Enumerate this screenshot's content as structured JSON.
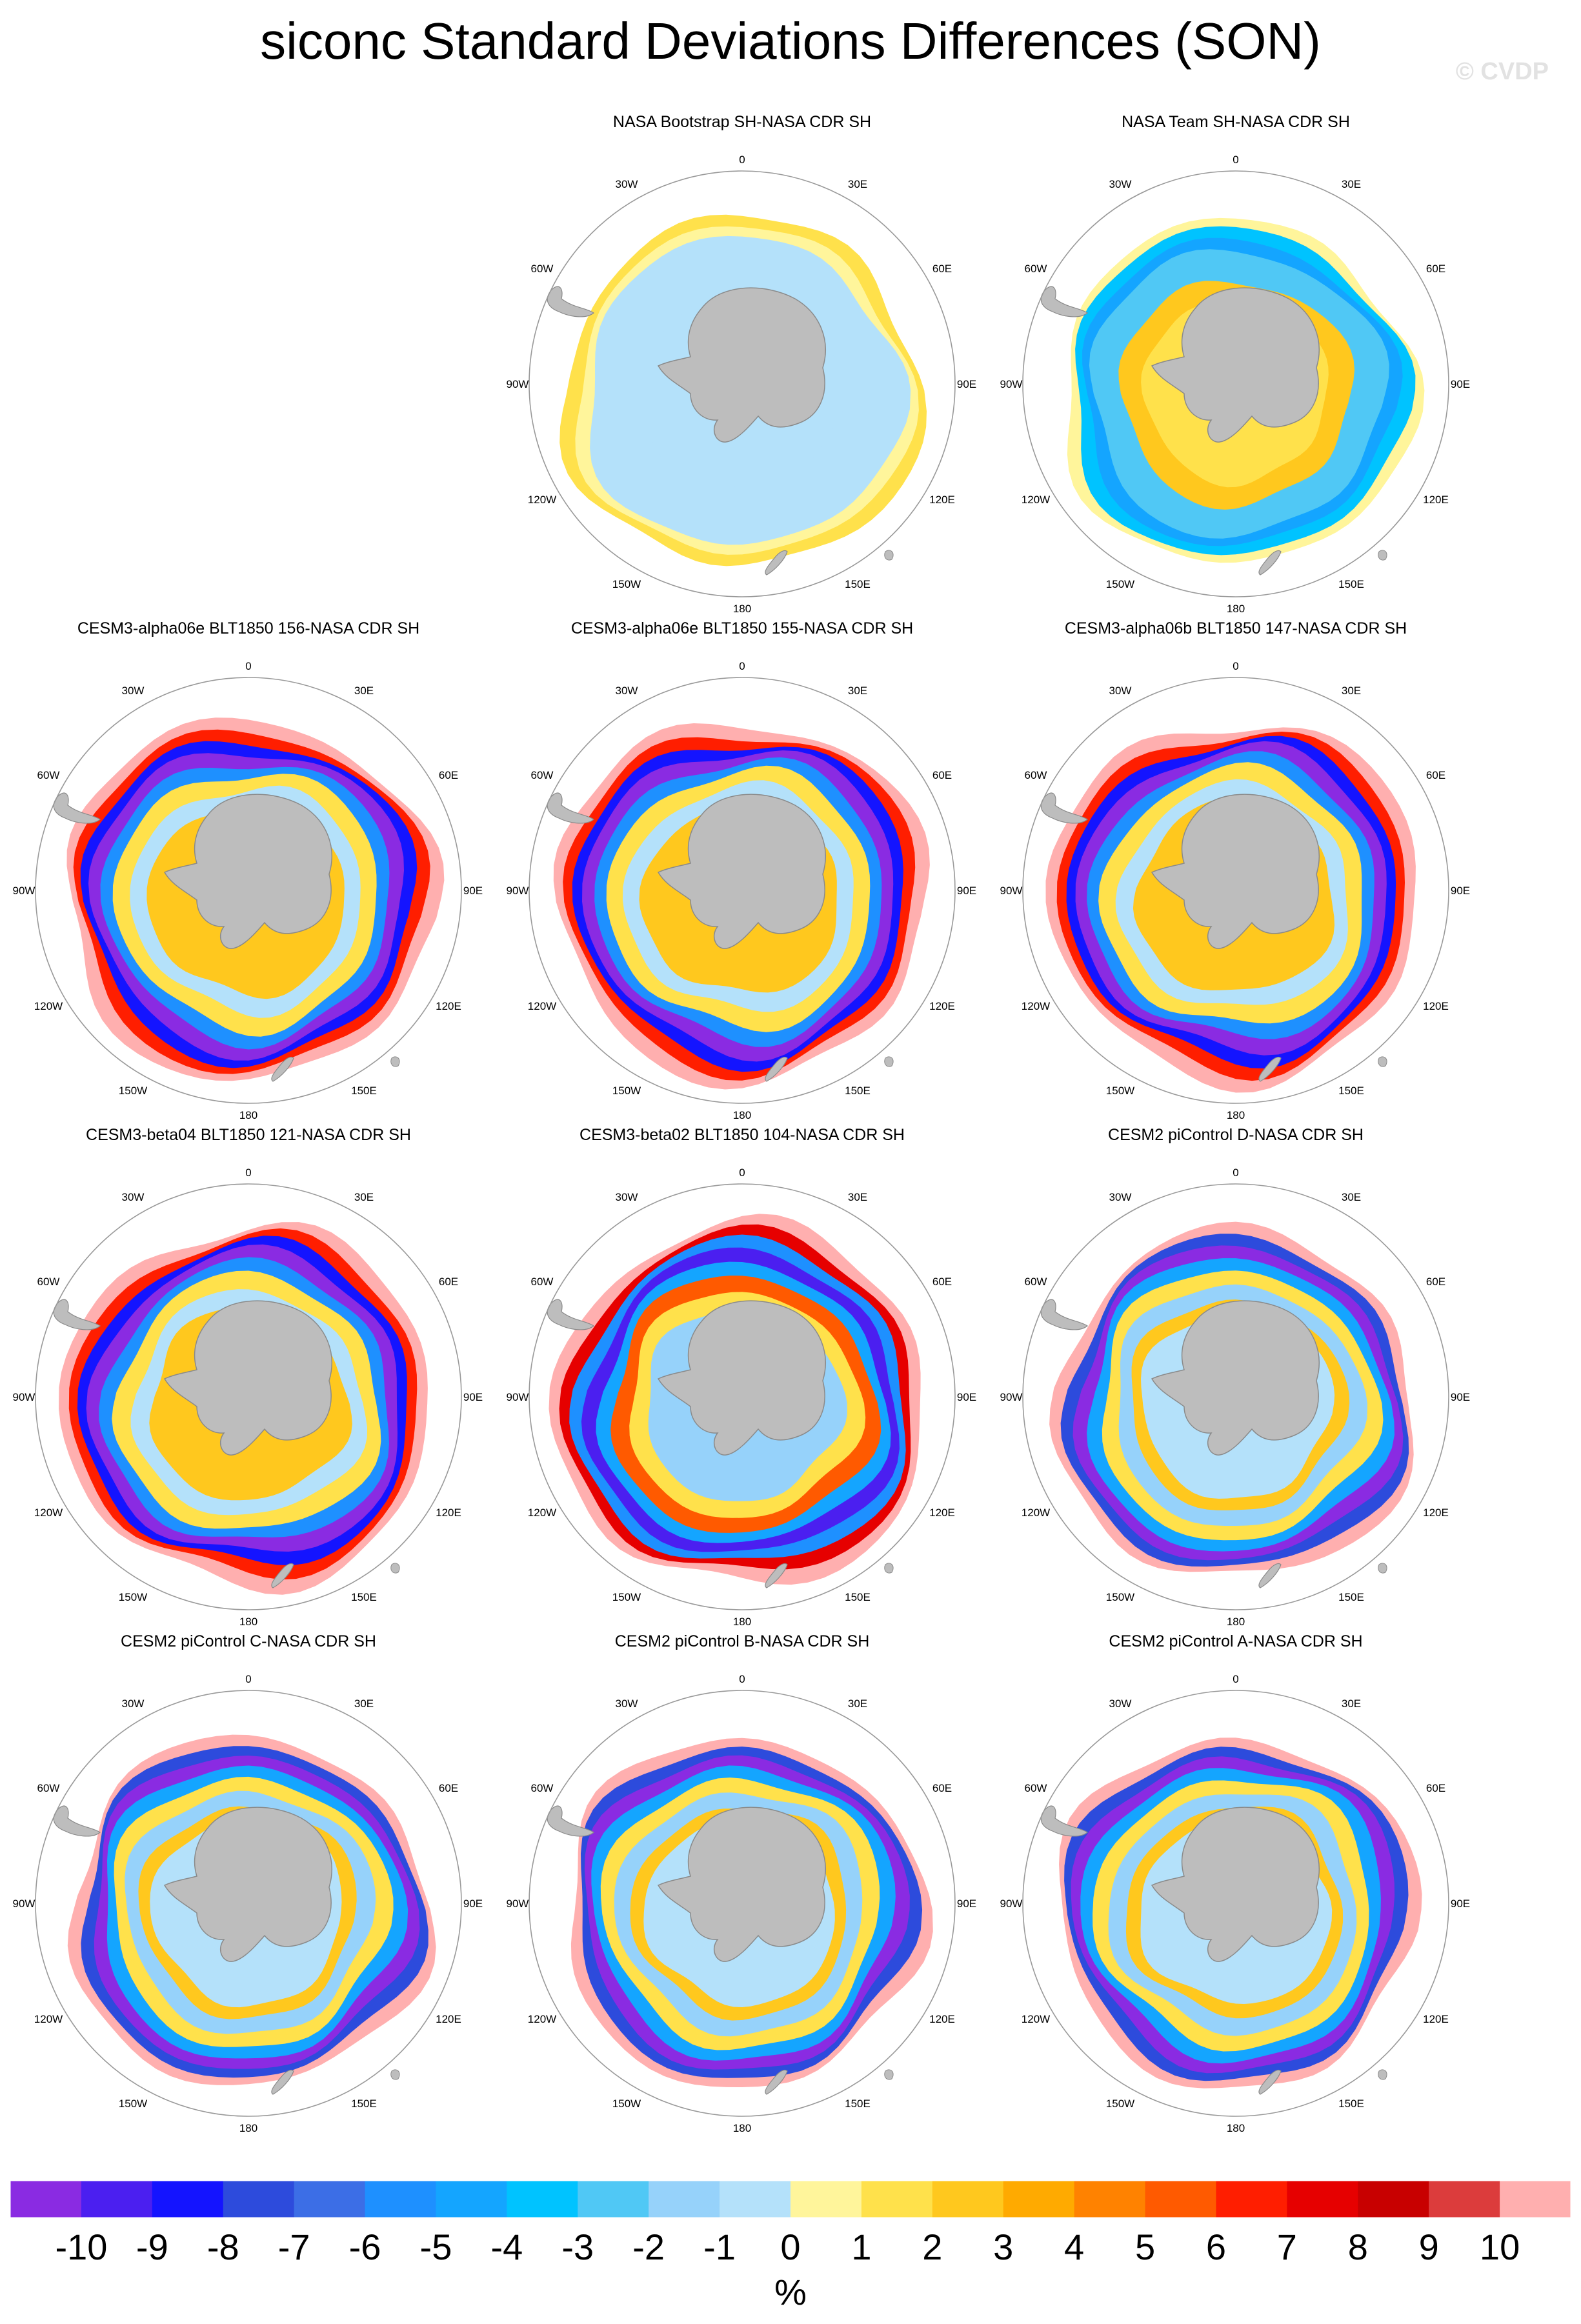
{
  "title": "siconc Standard Deviations Differences (SON)",
  "watermark": "© CVDP",
  "longitude_labels": {
    "top": "0",
    "top_right": "30E",
    "right_upper": "60E",
    "right": "90E",
    "right_lower": "120E",
    "bottom_right": "150E",
    "bottom": "180",
    "bottom_left": "150W",
    "left_lower": "120W",
    "left": "90W",
    "left_upper": "60W",
    "top_left": "30W"
  },
  "panels": [
    {
      "title": "NASA Bootstrap SH-NASA CDR SH",
      "pattern": "bootstrap"
    },
    {
      "title": "NASA Team SH-NASA CDR SH",
      "pattern": "team"
    },
    {
      "title": "CESM3-alpha06e BLT1850 156-NASA CDR SH",
      "pattern": "model"
    },
    {
      "title": "CESM3-alpha06e BLT1850 155-NASA CDR SH",
      "pattern": "model"
    },
    {
      "title": "CESM3-alpha06b BLT1850 147-NASA CDR SH",
      "pattern": "model"
    },
    {
      "title": "CESM3-beta04 BLT1850 121-NASA CDR SH",
      "pattern": "model"
    },
    {
      "title": "CESM3-beta02 BLT1850 104-NASA CDR SH",
      "pattern": "model-warm"
    },
    {
      "title": "CESM2 piControl D-NASA CDR SH",
      "pattern": "cesm2"
    },
    {
      "title": "CESM2 piControl C-NASA CDR SH",
      "pattern": "cesm2"
    },
    {
      "title": "CESM2 piControl B-NASA CDR SH",
      "pattern": "cesm2"
    },
    {
      "title": "CESM2 piControl A-NASA CDR SH",
      "pattern": "cesm2"
    }
  ],
  "colorbar": {
    "colors": [
      "#8a2be2",
      "#4b1ff0",
      "#1414ff",
      "#2d4bdc",
      "#3c6ee6",
      "#1e90ff",
      "#14a5ff",
      "#00c3ff",
      "#50c8f5",
      "#96d2fa",
      "#b4e1fa",
      "#fff59b",
      "#ffe14b",
      "#ffc81e",
      "#ffaa00",
      "#ff8200",
      "#ff5a00",
      "#ff1e00",
      "#e60000",
      "#c80000",
      "#dc3c3c",
      "#ffafaf"
    ],
    "labels": [
      "-10",
      "-9",
      "-8",
      "-7",
      "-6",
      "-5",
      "-4",
      "-3",
      "-2",
      "-1",
      "0",
      "1",
      "2",
      "3",
      "4",
      "5",
      "6",
      "7",
      "8",
      "9",
      "10"
    ],
    "unit": "%"
  }
}
